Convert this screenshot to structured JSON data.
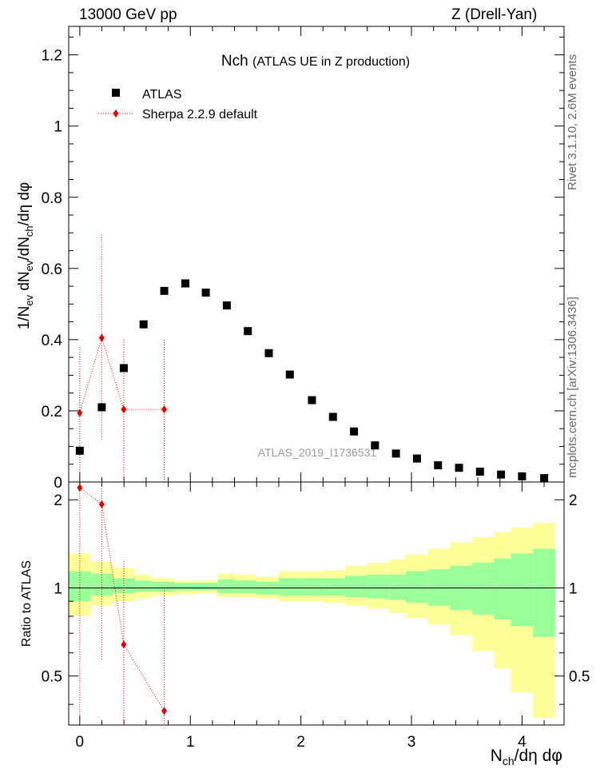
{
  "header": {
    "energy": "13000 GeV pp",
    "process": "Z (Drell-Yan)"
  },
  "side_labels": {
    "rivet": "Rivet 3.1.10, 2.6M events",
    "mcplots": "mcplots.cern.ch [arXiv:1306.3436]"
  },
  "colors": {
    "data": "#000000",
    "mc": "#e00000",
    "band_inner": "#99ff99",
    "band_outer": "#ffff99"
  },
  "chart_data": [
    {
      "type": "scatter",
      "title": "Nch",
      "subtitle": "(ATLAS UE in Z production)",
      "analysis_tag": "ATLAS_2019_I1736531",
      "ylabel": "1/N_ev dN_ev/dN_ch/dη dφ",
      "xlabel": "N_ch/dη dφ",
      "xlim": [
        -0.1,
        4.38
      ],
      "ylim": [
        0,
        1.28
      ],
      "yticks": [
        0,
        0.2,
        0.4,
        0.6,
        0.8,
        1,
        1.2
      ],
      "ytick_labels": [
        "0",
        "0.2",
        "0.4",
        "0.6",
        "0.8",
        "1",
        "1.2"
      ],
      "legend_position": "top-left",
      "series": [
        {
          "name": "ATLAS",
          "marker": "square",
          "x": [
            0.0,
            0.199,
            0.398,
            0.577,
            0.764,
            0.955,
            1.14,
            1.33,
            1.52,
            1.71,
            1.9,
            2.1,
            2.29,
            2.48,
            2.67,
            2.86,
            3.05,
            3.24,
            3.43,
            3.62,
            3.81,
            4.0,
            4.2
          ],
          "values": [
            0.088,
            0.21,
            0.32,
            0.443,
            0.537,
            0.558,
            0.532,
            0.496,
            0.424,
            0.362,
            0.302,
            0.23,
            0.183,
            0.142,
            0.103,
            0.08,
            0.066,
            0.047,
            0.04,
            0.029,
            0.021,
            0.016,
            0.011
          ]
        },
        {
          "name": "Sherpa 2.2.9 default",
          "marker": "diamond",
          "x": [
            0.0,
            0.199,
            0.398,
            0.764
          ],
          "values": [
            0.194,
            0.405,
            0.204,
            0.204
          ],
          "err_low": [
            0.194,
            0.285,
            0.204,
            0.204
          ],
          "err_high": [
            0.19,
            0.29,
            0.2,
            0.2
          ]
        }
      ]
    },
    {
      "type": "line",
      "ylabel": "Ratio to ATLAS",
      "xlabel": "N_ch/dη dφ",
      "xlim": [
        -0.1,
        4.38
      ],
      "ylim": [
        0.34,
        2.3
      ],
      "yticks": [
        0.5,
        1,
        2
      ],
      "ytick_labels": [
        "0.5",
        "1",
        "2"
      ],
      "xticks": [
        0,
        1,
        2,
        3,
        4
      ],
      "xtick_labels": [
        "0",
        "1",
        "2",
        "3",
        "4"
      ],
      "bin_edges": [
        -0.1,
        0.1,
        0.3,
        0.5,
        0.65,
        0.85,
        1.05,
        1.25,
        1.4,
        1.6,
        1.8,
        2.0,
        2.2,
        2.4,
        2.6,
        2.8,
        2.95,
        3.15,
        3.35,
        3.55,
        3.75,
        3.9,
        4.1,
        4.3
      ],
      "band_inner_low": [
        0.9,
        0.94,
        0.96,
        0.97,
        0.97,
        0.98,
        0.98,
        0.96,
        0.96,
        0.95,
        0.94,
        0.94,
        0.94,
        0.93,
        0.92,
        0.91,
        0.89,
        0.87,
        0.84,
        0.81,
        0.78,
        0.74,
        0.68
      ],
      "band_inner_high": [
        1.14,
        1.12,
        1.08,
        1.06,
        1.05,
        1.04,
        1.04,
        1.07,
        1.06,
        1.05,
        1.08,
        1.08,
        1.08,
        1.1,
        1.11,
        1.11,
        1.14,
        1.16,
        1.19,
        1.22,
        1.26,
        1.31,
        1.36
      ],
      "band_outer_low": [
        0.8,
        0.87,
        0.9,
        0.92,
        0.94,
        0.95,
        0.96,
        0.93,
        0.93,
        0.92,
        0.9,
        0.9,
        0.89,
        0.87,
        0.85,
        0.82,
        0.79,
        0.75,
        0.69,
        0.61,
        0.53,
        0.44,
        0.36
      ],
      "band_outer_high": [
        1.31,
        1.23,
        1.17,
        1.11,
        1.08,
        1.06,
        1.06,
        1.12,
        1.11,
        1.09,
        1.14,
        1.14,
        1.15,
        1.19,
        1.22,
        1.25,
        1.3,
        1.36,
        1.43,
        1.49,
        1.55,
        1.61,
        1.67
      ],
      "series": [
        {
          "name": "Sherpa 2.2.9 default",
          "x": [
            0.0,
            0.199,
            0.398,
            0.764
          ],
          "values": [
            2.2,
            1.93,
            0.64,
            0.38
          ],
          "err_low": [
            1.9,
            1.36,
            0.3,
            0.1
          ],
          "err_high": [
            0.1,
            0.4,
            0.6,
            0.6
          ]
        }
      ]
    }
  ]
}
